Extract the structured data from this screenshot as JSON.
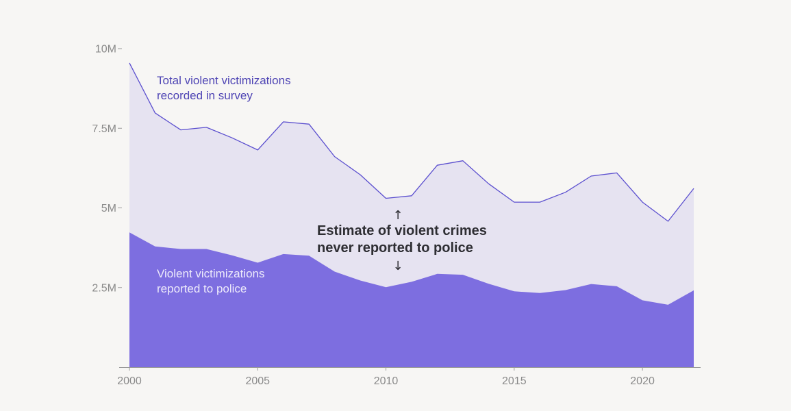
{
  "chart_data": {
    "type": "area",
    "x": [
      2000,
      2001,
      2002,
      2003,
      2004,
      2005,
      2006,
      2007,
      2008,
      2009,
      2010,
      2011,
      2012,
      2013,
      2014,
      2015,
      2016,
      2017,
      2018,
      2019,
      2020,
      2021,
      2022
    ],
    "series": [
      {
        "name": "Total violent victimizations recorded in survey",
        "values": [
          9.55,
          7.98,
          7.45,
          7.53,
          7.2,
          6.82,
          7.7,
          7.63,
          6.61,
          6.04,
          5.3,
          5.38,
          6.34,
          6.48,
          5.76,
          5.18,
          5.18,
          5.49,
          6.0,
          6.1,
          5.18,
          4.58,
          5.61
        ],
        "color": "#5b4fcf",
        "fill": "#e6e3f1"
      },
      {
        "name": "Violent victimizations reported to police",
        "values": [
          4.23,
          3.79,
          3.71,
          3.71,
          3.51,
          3.28,
          3.55,
          3.5,
          3.0,
          2.72,
          2.51,
          2.68,
          2.93,
          2.9,
          2.62,
          2.38,
          2.33,
          2.42,
          2.61,
          2.54,
          2.1,
          1.96,
          2.41
        ],
        "color": "#7d6ee0"
      }
    ],
    "xticks": [
      2000,
      2005,
      2010,
      2015,
      2020
    ],
    "yticks": [
      {
        "value": 2.5,
        "label": "2.5M"
      },
      {
        "value": 5,
        "label": "5M"
      },
      {
        "value": 7.5,
        "label": "7.5M"
      },
      {
        "value": 10,
        "label": "10M"
      }
    ],
    "xlim": [
      2000,
      2022
    ],
    "ylim": [
      0,
      10
    ],
    "labels": {
      "total_line1": "Total violent victimizations",
      "total_line2": "recorded in survey",
      "reported_line1": "Violent victimizations",
      "reported_line2": "reported to police"
    },
    "annotation": {
      "line1": "Estimate of violent crimes",
      "line2": "never reported to police",
      "arrow_up": "↑",
      "arrow_down": "↓"
    },
    "title": "",
    "xlabel": "",
    "ylabel": "",
    "grid": false
  }
}
